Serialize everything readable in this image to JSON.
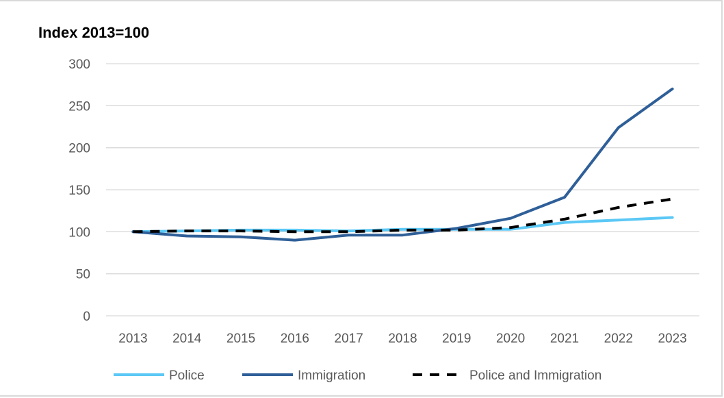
{
  "chart_data": {
    "type": "line",
    "title": "",
    "unit_label": "Index 2013=100",
    "xlabel": "",
    "ylabel": "",
    "categories": [
      "2013",
      "2014",
      "2015",
      "2016",
      "2017",
      "2018",
      "2019",
      "2020",
      "2021",
      "2022",
      "2023"
    ],
    "y_ticks": [
      "0",
      "50",
      "100",
      "150",
      "200",
      "250",
      "300"
    ],
    "ylim": [
      0,
      300
    ],
    "grid": true,
    "legend_position": "bottom",
    "series": [
      {
        "name": "Police",
        "color": "#5bc8f5",
        "style": "solid",
        "values": [
          100,
          101,
          102,
          102,
          101,
          103,
          103,
          103,
          111,
          114,
          117
        ]
      },
      {
        "name": "Immigration",
        "color": "#2f5f98",
        "style": "solid",
        "values": [
          100,
          95,
          94,
          90,
          96,
          96,
          104,
          116,
          141,
          224,
          270
        ]
      },
      {
        "name": "Police and Immigration",
        "color": "#000000",
        "style": "dashed",
        "values": [
          100,
          101,
          101,
          100,
          100,
          102,
          102,
          105,
          115,
          129,
          139
        ]
      }
    ]
  }
}
